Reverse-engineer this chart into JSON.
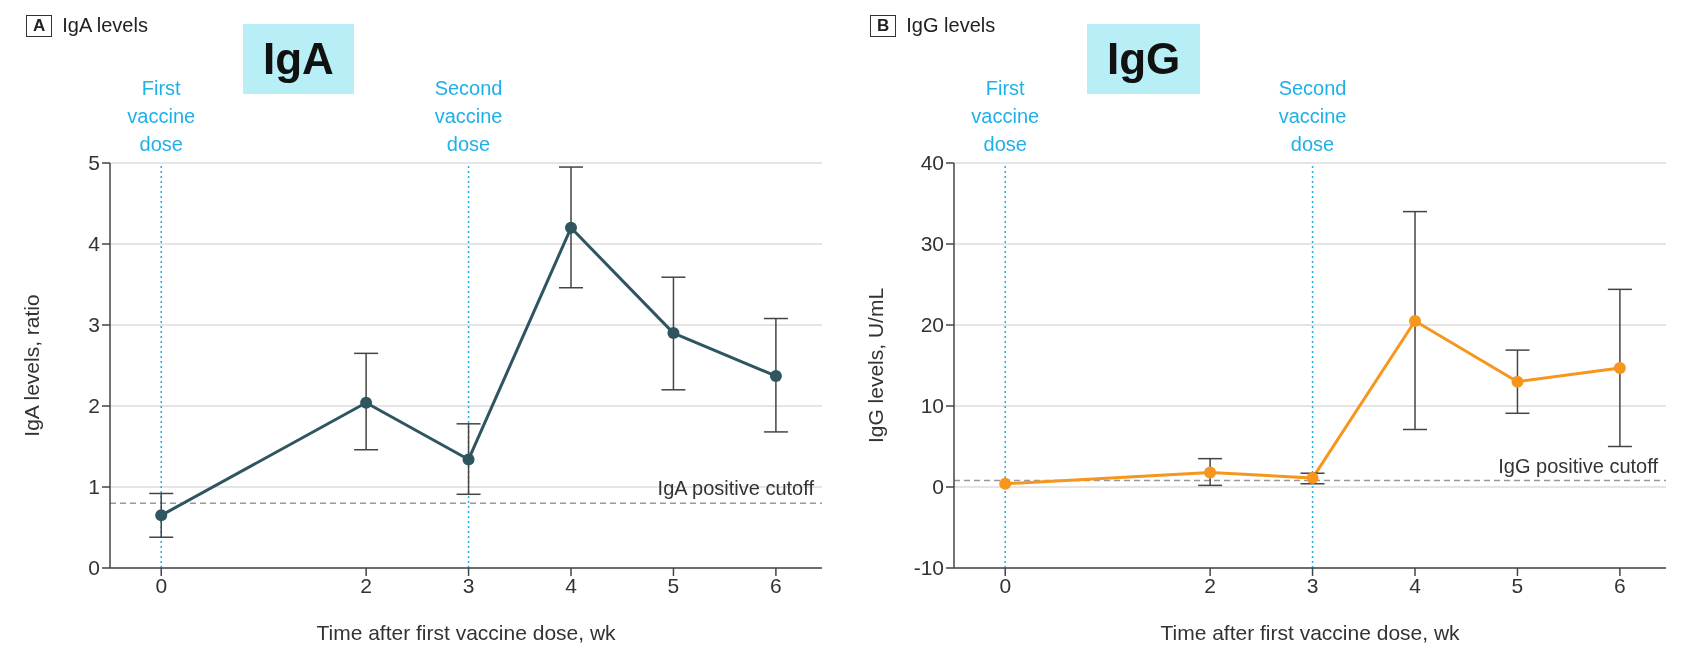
{
  "chart_data": [
    {
      "type": "line",
      "title": "IgA levels",
      "annotations": [
        "A",
        "IgA"
      ],
      "xlabel": "Time after first vaccine dose, wk",
      "ylabel": "IgA levels, ratio",
      "x": [
        0,
        2,
        3,
        4,
        5,
        6
      ],
      "series": [
        {
          "color": "#2e5560",
          "values": [
            0.65,
            2.04,
            1.34,
            4.2,
            2.9,
            2.37
          ],
          "errors": [
            [
              0.38,
              0.92
            ],
            [
              1.46,
              2.65
            ],
            [
              0.91,
              1.78
            ],
            [
              3.46,
              4.95
            ],
            [
              2.2,
              3.59
            ],
            [
              1.68,
              3.08
            ]
          ]
        }
      ],
      "xlim": [
        -0.5,
        6.45
      ],
      "xticks": [
        0,
        2,
        3,
        4,
        5,
        6
      ],
      "ylim": [
        0,
        5
      ],
      "yticks": [
        0,
        1,
        2,
        3,
        4,
        5
      ],
      "grid": "y",
      "marker": "circle",
      "line_style": "solid",
      "ref_lines": [
        {
          "axis": "x",
          "value": 0,
          "label": "First vaccine dose",
          "color": "#1fb0e8",
          "line_style": "dotted"
        },
        {
          "axis": "x",
          "value": 3,
          "label": "Second vaccine dose",
          "color": "#1fb0e8",
          "line_style": "dotted"
        },
        {
          "axis": "y",
          "value": 0.8,
          "label": "IgA positive cutoff",
          "color": "#999999",
          "line_style": "dashed"
        }
      ]
    },
    {
      "type": "line",
      "title": "IgG levels",
      "annotations": [
        "B",
        "IgG"
      ],
      "xlabel": "Time after first vaccine dose, wk",
      "ylabel": "IgG levels, U/mL",
      "x": [
        0,
        2,
        3,
        4,
        5,
        6
      ],
      "series": [
        {
          "color": "#f7961e",
          "values": [
            0.4,
            1.8,
            1.1,
            20.5,
            13.0,
            14.7
          ],
          "errors": [
            null,
            [
              0.2,
              3.5
            ],
            [
              0.4,
              1.7
            ],
            [
              7.1,
              34
            ],
            [
              9.1,
              16.9
            ],
            [
              5.0,
              24.4
            ]
          ]
        }
      ],
      "xlim": [
        -0.5,
        6.45
      ],
      "xticks": [
        0,
        2,
        3,
        4,
        5,
        6
      ],
      "ylim": [
        -10,
        40
      ],
      "yticks": [
        -10,
        0,
        10,
        20,
        30,
        40
      ],
      "grid": "y",
      "marker": "circle",
      "line_style": "solid",
      "ref_lines": [
        {
          "axis": "x",
          "value": 0,
          "label": "First vaccine dose",
          "color": "#1fb0e8",
          "line_style": "dotted"
        },
        {
          "axis": "x",
          "value": 3,
          "label": "Second vaccine dose",
          "color": "#1fb0e8",
          "line_style": "dotted"
        },
        {
          "axis": "y",
          "value": 0.8,
          "label": "IgG positive cutoff",
          "color": "#999999",
          "line_style": "dashed"
        }
      ]
    }
  ]
}
